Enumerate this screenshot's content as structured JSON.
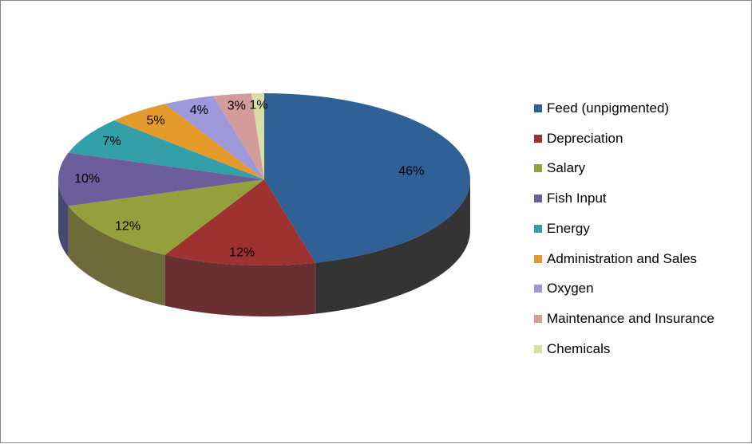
{
  "chart_data": {
    "type": "pie",
    "style": "3d",
    "categories": [
      "Feed (unpigmented)",
      "Depreciation",
      "Salary",
      "Fish Input",
      "Energy",
      "Administration and Sales",
      "Oxygen",
      "Maintenance and Insurance",
      "Chemicals"
    ],
    "values": [
      46,
      12,
      12,
      10,
      7,
      5,
      4,
      3,
      1
    ],
    "labels": [
      "46%",
      "12%",
      "12%",
      "10%",
      "7%",
      "5%",
      "4%",
      "3%",
      "1%"
    ],
    "colors": [
      "#2F6096",
      "#9D3231",
      "#94A03B",
      "#6C5D9B",
      "#339FA9",
      "#E59A2C",
      "#9C98D9",
      "#D39B9A",
      "#D6DFA6"
    ],
    "side_colors": [
      "#343434",
      "#6A2F31",
      "#6E6B3A",
      "#464870",
      "#266E74",
      "#9E6A1F",
      "#6E6B95",
      "#936B6A",
      "#949A72"
    ],
    "legend_position": "right"
  }
}
